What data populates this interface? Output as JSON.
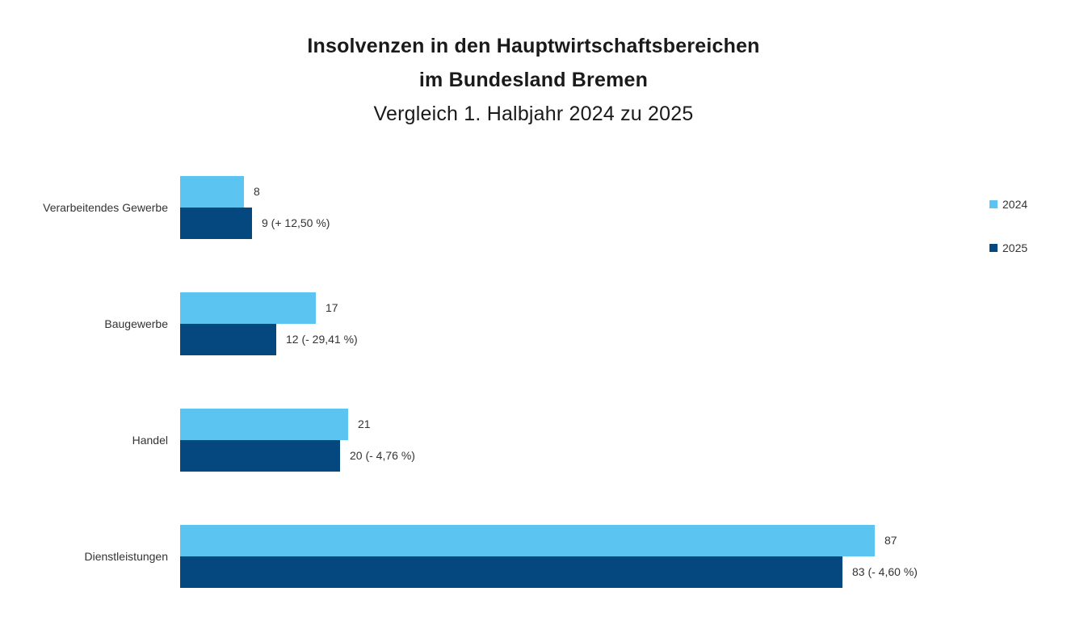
{
  "title": {
    "line1": "Insolvenzen in den Hauptwirtschaftsbereichen",
    "line2": "im Bundesland Bremen",
    "line3": "Vergleich 1. Halbjahr 2024 zu 2025"
  },
  "legend": [
    {
      "label": "2024",
      "color": "#5bc4f0"
    },
    {
      "label": "2025",
      "color": "#05477f"
    }
  ],
  "chart_data": {
    "type": "bar",
    "orientation": "horizontal",
    "title": "Insolvenzen in den Hauptwirtschaftsbereichen im Bundesland Bremen — Vergleich 1. Halbjahr 2024 zu 2025",
    "categories": [
      "Verarbeitendes Gewerbe",
      "Baugewerbe",
      "Handel",
      "Dienstleistungen"
    ],
    "series": [
      {
        "name": "2024",
        "color": "#5bc4f0",
        "values": [
          8,
          17,
          21,
          87
        ],
        "labels": [
          "8",
          "17",
          "21",
          "87"
        ]
      },
      {
        "name": "2025",
        "color": "#05477f",
        "values": [
          9,
          12,
          20,
          83
        ],
        "labels": [
          "9 (+ 12,50 %)",
          "12 (- 29,41 %)",
          "20 (- 4,76 %)",
          "83 (- 4,60 %)"
        ]
      }
    ],
    "xlim": [
      0,
      88
    ],
    "grid": false,
    "legend_position": "right",
    "value_labels": "outside-end"
  }
}
